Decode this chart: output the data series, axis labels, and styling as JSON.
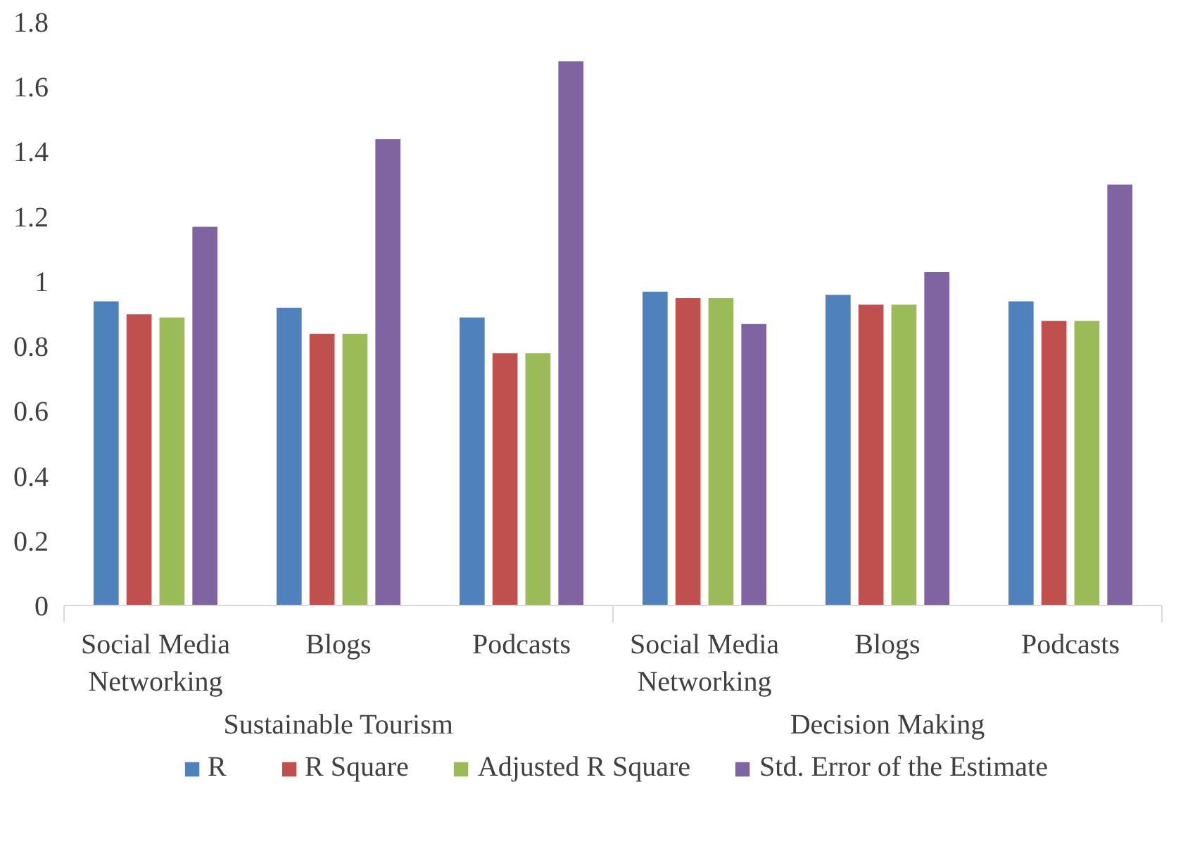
{
  "chart_data": {
    "type": "bar",
    "categories": [
      "Social Media Networking",
      "Blogs",
      "Podcasts",
      "Social Media Networking",
      "Blogs",
      "Podcasts"
    ],
    "annotations": [
      "Sustainable Tourism",
      "Decision Making"
    ],
    "series": [
      {
        "name": "R",
        "color": "#4f81bd",
        "values": [
          0.94,
          0.92,
          0.89,
          0.97,
          0.96,
          0.94
        ]
      },
      {
        "name": "R Square",
        "color": "#c0504d",
        "values": [
          0.9,
          0.84,
          0.78,
          0.95,
          0.93,
          0.88
        ]
      },
      {
        "name": "Adjusted R Square",
        "color": "#9bbb59",
        "values": [
          0.89,
          0.84,
          0.78,
          0.95,
          0.93,
          0.88
        ]
      },
      {
        "name": "Std. Error of the Estimate",
        "color": "#8064a2",
        "values": [
          1.17,
          1.44,
          1.68,
          0.87,
          1.03,
          1.3
        ]
      }
    ],
    "ylim": [
      0,
      1.8
    ],
    "yticks": [
      0,
      0.2,
      0.4,
      0.6,
      0.8,
      1,
      1.2,
      1.4,
      1.6,
      1.8
    ],
    "grid": false,
    "legend": "bottom"
  }
}
